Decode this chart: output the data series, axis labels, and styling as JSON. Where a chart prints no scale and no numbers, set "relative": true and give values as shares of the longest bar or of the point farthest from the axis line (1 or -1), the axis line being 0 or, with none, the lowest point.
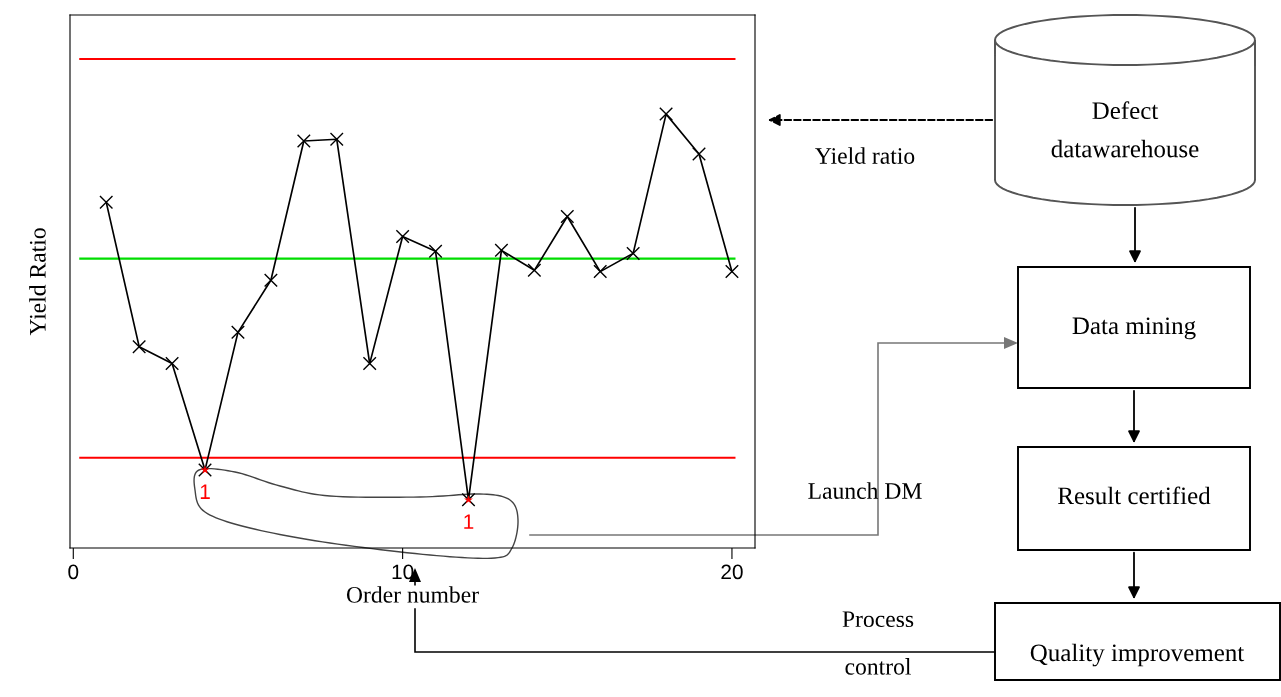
{
  "chart_data": [
    {
      "type": "line",
      "xlabel": "Order number",
      "ylabel": "Yield Ratio",
      "relative": true,
      "xlim": [
        -0.1,
        20.7
      ],
      "xticks": [
        0,
        10,
        20
      ],
      "tick_labels": "x",
      "grid": false,
      "legend": false,
      "marker": "cross",
      "line_style": "solid",
      "x": [
        1,
        2,
        3,
        4,
        5,
        6,
        7,
        8,
        9,
        10,
        11,
        12,
        13,
        14,
        15,
        16,
        17,
        18,
        19,
        20
      ],
      "series": [
        {
          "color": "#000000",
          "values": [
            0.797,
            0.464,
            0.425,
            0.18,
            0.497,
            0.617,
            0.938,
            0.942,
            0.425,
            0.718,
            0.684,
            0.111,
            0.686,
            0.64,
            0.764,
            0.637,
            0.679,
            1.0,
            0.908,
            0.637
          ]
        },
        {
          "type": "scatter",
          "marker": "star",
          "color": "#ff0000",
          "x": [
            4,
            12
          ],
          "values": [
            0.18,
            0.111
          ]
        }
      ],
      "ref_lines": [
        {
          "axis": "y",
          "value": 1.127,
          "color": "#ff0000"
        },
        {
          "axis": "y",
          "value": 0.667,
          "color": "#00dd00"
        },
        {
          "axis": "y",
          "value": 0.208,
          "color": "#ff0000"
        }
      ],
      "annotations": [
        {
          "text": "1",
          "x": 4,
          "y": 0.18
        },
        {
          "text": "1",
          "x": 12,
          "y": 0.111
        }
      ]
    },
    {
      "type": "other",
      "annotations": [
        "Defect\ndatawarehouse",
        "Yield ratio",
        "Data mining",
        "Result certified",
        "Quality improvement",
        "Launch DM",
        "Process\ncontrol"
      ]
    }
  ]
}
